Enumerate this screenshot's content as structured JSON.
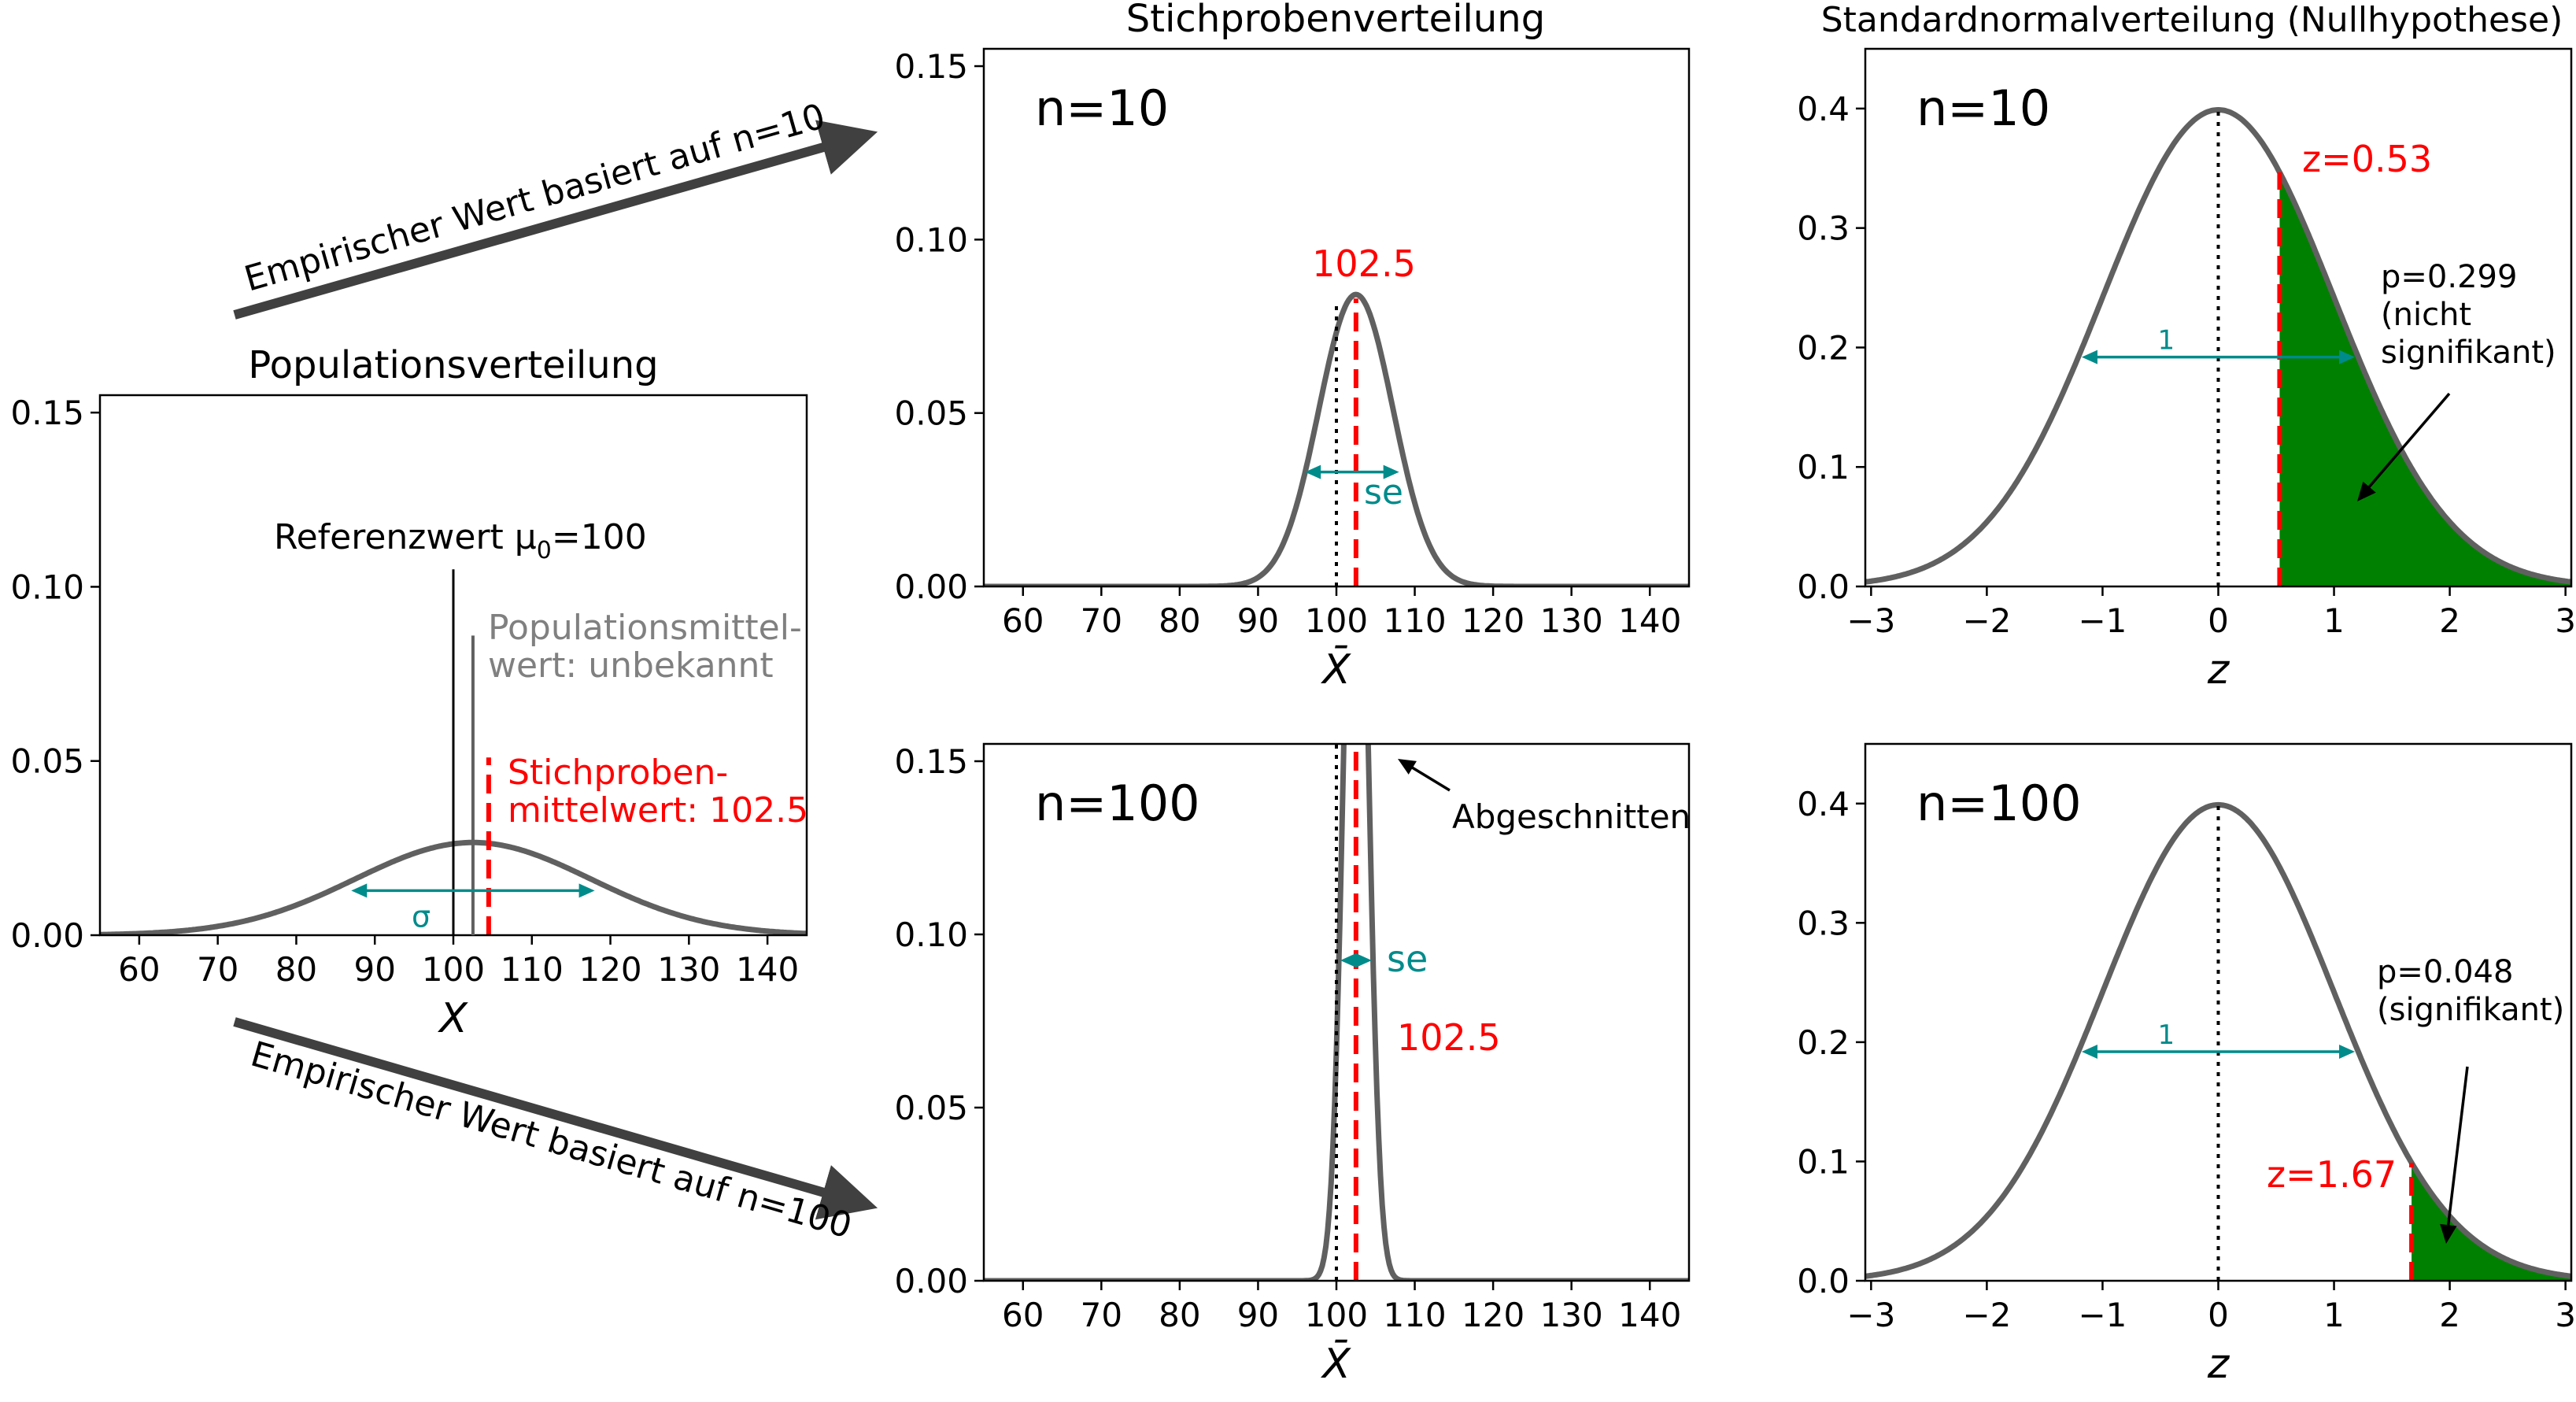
{
  "figure": {
    "arrow_top_label": "Empirischer Wert basiert auf n=10",
    "arrow_bottom_label": "Empirischer Wert basiert auf n=100",
    "column_title_sampling": "Stichprobenverteilung",
    "column_title_standard": "Standardnormalverteilung (Nullhypothese)"
  },
  "colors": {
    "curve": "#606060",
    "red": "#ff0000",
    "teal": "#008b8b",
    "green": "#008000",
    "gray_text": "#808080"
  },
  "chart_data": [
    {
      "id": "population",
      "type": "line",
      "title": "Populationsverteilung",
      "xlabel": "X",
      "ylabel": "",
      "xlim": [
        55,
        145
      ],
      "ylim": [
        0,
        0.155
      ],
      "xticks": [
        60,
        70,
        80,
        90,
        100,
        110,
        120,
        130,
        140
      ],
      "yticks": [
        "0.00",
        "0.05",
        "0.10",
        "0.15"
      ],
      "curve": {
        "kind": "normal",
        "mean": 102.5,
        "sd": 15
      },
      "reference": {
        "x": 100,
        "top": 0.105,
        "label_prefix": "Referenzwert μ",
        "label_sub": "0",
        "label_suffix": "=100"
      },
      "population_mean": {
        "x": 102.5,
        "top": 0.086,
        "label_line1": "Populationsmittel-",
        "label_line2": "wert: unbekannt"
      },
      "sample_mean": {
        "x": 104.5,
        "top": 0.051,
        "label_line1": "Stichproben-",
        "label_line2": "mittelwert: 102.5"
      },
      "sigma": {
        "from": 87,
        "to": 118,
        "y": 0.0128,
        "label": "σ"
      }
    },
    {
      "id": "sampling_n10",
      "type": "line",
      "title": "",
      "panel_label": "n=10",
      "xlabel": "X̄",
      "xlim": [
        55,
        145
      ],
      "ylim": [
        0,
        0.155
      ],
      "xticks": [
        60,
        70,
        80,
        90,
        100,
        110,
        120,
        130,
        140
      ],
      "yticks": [
        "0.00",
        "0.05",
        "0.10",
        "0.15"
      ],
      "curve": {
        "kind": "normal",
        "mean": 102.5,
        "sd": 4.74
      },
      "reference_x": 100,
      "sample_mean": {
        "x": 102.5,
        "label": "102.5"
      },
      "se": {
        "from": 96,
        "to": 108,
        "y": 0.033,
        "label": "se"
      }
    },
    {
      "id": "sampling_n100",
      "type": "line",
      "title": "",
      "panel_label": "n=100",
      "xlabel": "X̄",
      "xlim": [
        55,
        145
      ],
      "ylim": [
        0,
        0.155
      ],
      "xticks": [
        60,
        70,
        80,
        90,
        100,
        110,
        120,
        130,
        140
      ],
      "yticks": [
        "0.00",
        "0.05",
        "0.10",
        "0.15"
      ],
      "curve": {
        "kind": "normal",
        "mean": 102.5,
        "sd": 1.5
      },
      "reference_x": 100,
      "sample_mean": {
        "x": 102.5,
        "label": "102.5"
      },
      "se": {
        "from": 100.5,
        "to": 104.5,
        "y": 0.0925,
        "label": "se"
      },
      "cutoff_label": "Abgeschnitten"
    },
    {
      "id": "standard_n10",
      "type": "area",
      "title": "",
      "panel_label": "n=10",
      "xlabel": "z",
      "xlim": [
        -3.05,
        3.05
      ],
      "ylim": [
        0,
        0.45
      ],
      "xticks": [
        "−3",
        "−2",
        "−1",
        "0",
        "1",
        "2",
        "3"
      ],
      "yticks": [
        "0.0",
        "0.1",
        "0.2",
        "0.3",
        "0.4"
      ],
      "curve": {
        "kind": "normal",
        "mean": 0,
        "sd": 1
      },
      "z": 0.53,
      "z_label": "z=0.53",
      "p_lines": [
        "p=0.299",
        "(nicht",
        "signifikant)"
      ],
      "one_sd": {
        "from": -1.18,
        "to": 1.18,
        "y": 0.192,
        "label": "1"
      }
    },
    {
      "id": "standard_n100",
      "type": "area",
      "title": "",
      "panel_label": "n=100",
      "xlabel": "z",
      "xlim": [
        -3.05,
        3.05
      ],
      "ylim": [
        0,
        0.45
      ],
      "xticks": [
        "−3",
        "−2",
        "−1",
        "0",
        "1",
        "2",
        "3"
      ],
      "yticks": [
        "0.0",
        "0.1",
        "0.2",
        "0.3",
        "0.4"
      ],
      "curve": {
        "kind": "normal",
        "mean": 0,
        "sd": 1
      },
      "z": 1.67,
      "z_label": "z=1.67",
      "p_lines": [
        "p=0.048",
        "(signifikant)"
      ],
      "one_sd": {
        "from": -1.18,
        "to": 1.18,
        "y": 0.192,
        "label": "1"
      }
    }
  ]
}
